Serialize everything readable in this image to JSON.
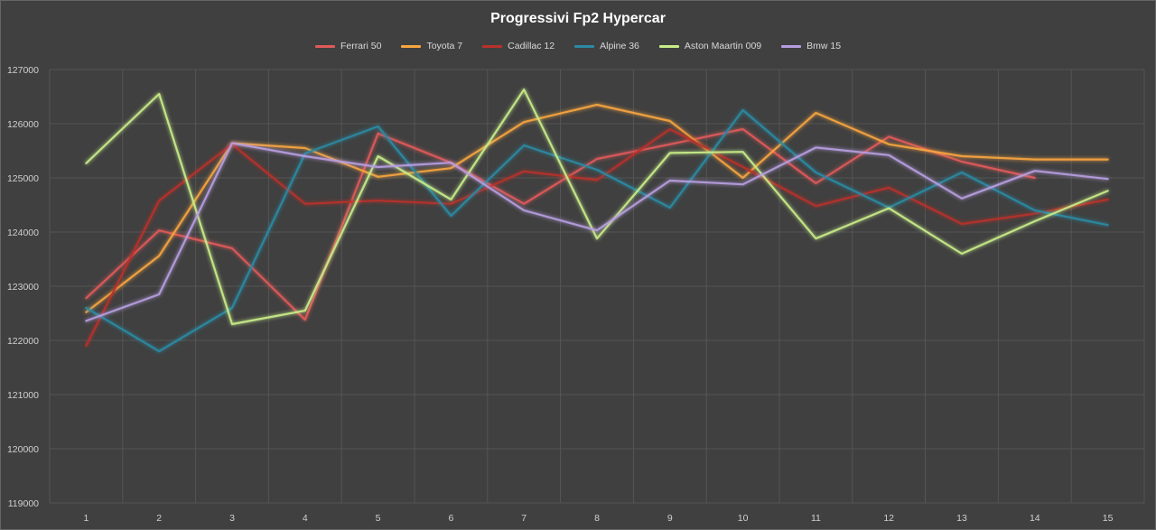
{
  "chart_data": {
    "type": "line",
    "title": "Progressivi Fp2 Hypercar",
    "xlabel": "",
    "ylabel": "",
    "ylim": [
      119000,
      127000
    ],
    "yticks": [
      119000,
      120000,
      121000,
      122000,
      123000,
      124000,
      125000,
      126000,
      127000
    ],
    "categories": [
      "1",
      "2",
      "3",
      "4",
      "5",
      "6",
      "7",
      "8",
      "9",
      "10",
      "11",
      "12",
      "13",
      "14",
      "15"
    ],
    "grid": true,
    "legend_position": "top",
    "series": [
      {
        "name": "Ferrari 50",
        "color": "#e05a5a",
        "values": [
          122780,
          124030,
          123700,
          122380,
          125820,
          125280,
          124520,
          125350,
          125620,
          125900,
          124900,
          125760,
          125300,
          125000,
          null
        ]
      },
      {
        "name": "Toyota 7",
        "color": "#f7a540",
        "values": [
          122520,
          123560,
          125640,
          125550,
          125020,
          125180,
          126030,
          126350,
          126050,
          125000,
          126200,
          125620,
          125400,
          125340,
          125340
        ]
      },
      {
        "name": "Cadillac 12",
        "color": "#b8312b",
        "values": [
          121900,
          124580,
          125620,
          124520,
          124580,
          124520,
          125120,
          124960,
          125900,
          125200,
          124480,
          124820,
          124150,
          124340,
          124600
        ]
      },
      {
        "name": "Alpine 36",
        "color": "#2b8aa3",
        "values": [
          122600,
          121800,
          122600,
          125450,
          125950,
          124300,
          125600,
          125150,
          124450,
          126250,
          125100,
          124450,
          125100,
          124400,
          124130
        ]
      },
      {
        "name": "Aston Maartin 009",
        "color": "#c8ec88",
        "values": [
          125270,
          126550,
          122300,
          122550,
          125400,
          124600,
          126630,
          123880,
          125460,
          125480,
          123880,
          124440,
          123600,
          124200,
          124760
        ]
      },
      {
        "name": "Bmw 15",
        "color": "#b79ee0",
        "values": [
          122360,
          122850,
          125640,
          125400,
          125200,
          125280,
          124400,
          124030,
          124950,
          124880,
          125560,
          125420,
          124620,
          125130,
          124980
        ]
      }
    ]
  }
}
